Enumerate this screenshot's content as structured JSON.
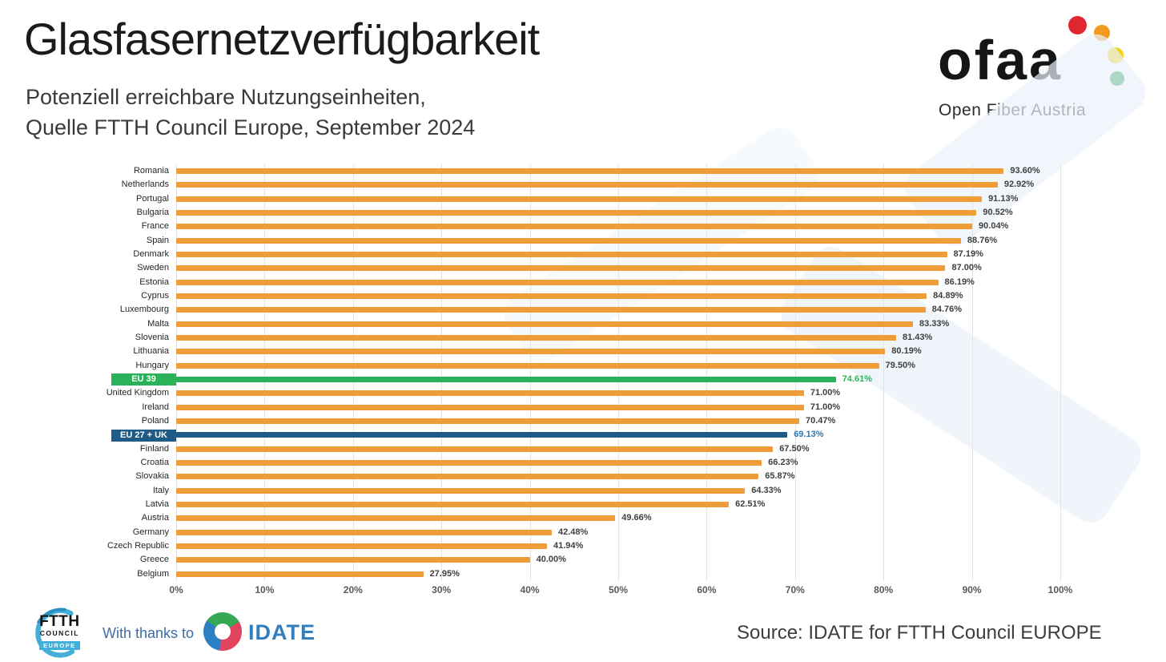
{
  "header": {
    "title": "Glasfasernetzverfügbarkeit",
    "subtitle_line1": "Potenziell erreichbare Nutzungseinheiten,",
    "subtitle_line2": "Quelle FTTH Council Europe, September 2024"
  },
  "logo": {
    "name": "ofaa",
    "tagline": "Open Fiber Austria",
    "dot_colors": [
      "#e0262f",
      "#f29a1e",
      "#f3d411",
      "#1a9b47"
    ]
  },
  "chart_data": {
    "type": "bar",
    "orientation": "horizontal",
    "xlim": [
      0,
      100
    ],
    "grid": true,
    "x_ticks": [
      "0%",
      "10%",
      "20%",
      "30%",
      "40%",
      "50%",
      "60%",
      "70%",
      "80%",
      "90%",
      "100%"
    ],
    "colors": {
      "bar_default": "#ee9d38",
      "eu39": "#2bb157",
      "eu27": "#1f5b87",
      "eu39_value_text": "#2fb25a",
      "eu27_value_text": "#2e77b5"
    },
    "rows": [
      {
        "label": "Romania",
        "value": 93.6,
        "display": "93.60%",
        "type": "default"
      },
      {
        "label": "Netherlands",
        "value": 92.92,
        "display": "92.92%",
        "type": "default"
      },
      {
        "label": "Portugal",
        "value": 91.13,
        "display": "91.13%",
        "type": "default"
      },
      {
        "label": "Bulgaria",
        "value": 90.52,
        "display": "90.52%",
        "type": "default"
      },
      {
        "label": "France",
        "value": 90.04,
        "display": "90.04%",
        "type": "default"
      },
      {
        "label": "Spain",
        "value": 88.76,
        "display": "88.76%",
        "type": "default"
      },
      {
        "label": "Denmark",
        "value": 87.19,
        "display": "87.19%",
        "type": "default"
      },
      {
        "label": "Sweden",
        "value": 87.0,
        "display": "87.00%",
        "type": "default"
      },
      {
        "label": "Estonia",
        "value": 86.19,
        "display": "86.19%",
        "type": "default"
      },
      {
        "label": "Cyprus",
        "value": 84.89,
        "display": "84.89%",
        "type": "default"
      },
      {
        "label": "Luxembourg",
        "value": 84.76,
        "display": "84.76%",
        "type": "default"
      },
      {
        "label": "Malta",
        "value": 83.33,
        "display": "83.33%",
        "type": "default"
      },
      {
        "label": "Slovenia",
        "value": 81.43,
        "display": "81.43%",
        "type": "default"
      },
      {
        "label": "Lithuania",
        "value": 80.19,
        "display": "80.19%",
        "type": "default"
      },
      {
        "label": "Hungary",
        "value": 79.5,
        "display": "79.50%",
        "type": "default"
      },
      {
        "label": "EU 39",
        "value": 74.61,
        "display": "74.61%",
        "type": "eu39"
      },
      {
        "label": "United Kingdom",
        "value": 71.0,
        "display": "71.00%",
        "type": "default"
      },
      {
        "label": "Ireland",
        "value": 71.0,
        "display": "71.00%",
        "type": "default"
      },
      {
        "label": "Poland",
        "value": 70.47,
        "display": "70.47%",
        "type": "default"
      },
      {
        "label": "EU 27 + UK",
        "value": 69.13,
        "display": "69.13%",
        "type": "eu27"
      },
      {
        "label": "Finland",
        "value": 67.5,
        "display": "67.50%",
        "type": "default"
      },
      {
        "label": "Croatia",
        "value": 66.23,
        "display": "66.23%",
        "type": "default"
      },
      {
        "label": "Slovakia",
        "value": 65.87,
        "display": "65.87%",
        "type": "default"
      },
      {
        "label": "Italy",
        "value": 64.33,
        "display": "64.33%",
        "type": "default"
      },
      {
        "label": "Latvia",
        "value": 62.51,
        "display": "62.51%",
        "type": "default"
      },
      {
        "label": "Austria",
        "value": 49.66,
        "display": "49.66%",
        "type": "default"
      },
      {
        "label": "Germany",
        "value": 42.48,
        "display": "42.48%",
        "type": "default"
      },
      {
        "label": "Czech Republic",
        "value": 41.94,
        "display": "41.94%",
        "type": "default"
      },
      {
        "label": "Greece",
        "value": 40.0,
        "display": "40.00%",
        "type": "default"
      },
      {
        "label": "Belgium",
        "value": 27.95,
        "display": "27.95%",
        "type": "default"
      }
    ]
  },
  "footer": {
    "ftth_logo": {
      "line1": "FTTH",
      "line2": "COUNCIL",
      "line3": "EUROPE"
    },
    "thanks_text": "With thanks to",
    "idate_label": "IDATE",
    "source_text": "Source: IDATE for FTTH Council EUROPE"
  }
}
